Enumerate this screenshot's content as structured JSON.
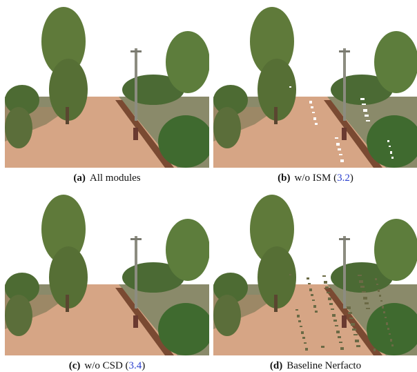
{
  "figure": {
    "panels": [
      {
        "label": "(a)",
        "text": "All modules"
      },
      {
        "label": "(b)",
        "text": "w/o ISM (",
        "ref": "3.2",
        "close": ")"
      },
      {
        "label": "(c)",
        "text": "w/o CSD (",
        "ref": "3.4",
        "close": ")"
      },
      {
        "label": "(d)",
        "text": "Baseline Nerfacto"
      }
    ]
  }
}
